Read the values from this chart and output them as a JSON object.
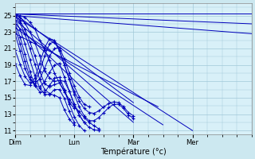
{
  "background_color": "#cce8f0",
  "plot_bg_color": "#d8f0f8",
  "grid_color": "#a0c8d8",
  "line_color": "#0000bb",
  "xlabel": "Température (°c)",
  "ylim": [
    10.5,
    26.5
  ],
  "yticks": [
    11,
    13,
    15,
    17,
    19,
    21,
    23,
    25
  ],
  "xlim": [
    0,
    96
  ],
  "day_positions": [
    0,
    24,
    48,
    72
  ],
  "day_labels": [
    "Dim",
    "Lun",
    "Mar",
    "Mer"
  ],
  "series": [
    {
      "start": 0,
      "step": 2,
      "values": [
        25.2,
        25.0,
        24.8,
        24.2,
        23.4,
        22.0,
        20.8,
        19.5,
        18.0,
        16.8,
        15.7,
        14.8,
        14.0,
        13.3,
        12.6,
        12.0,
        11.6,
        11.2
      ]
    },
    {
      "start": 0,
      "step": 2,
      "values": [
        25.1,
        24.8,
        24.1,
        23.0,
        21.7,
        20.1,
        18.3,
        17.4,
        17.0,
        17.1,
        17.0,
        15.8,
        14.2,
        12.9,
        12.0,
        11.4,
        11.1,
        11.0
      ]
    },
    {
      "start": 0,
      "step": 2,
      "values": [
        25.0,
        24.4,
        23.3,
        21.8,
        20.1,
        18.2,
        16.7,
        16.3,
        16.6,
        16.8,
        15.9,
        14.2,
        12.7,
        11.6,
        11.0
      ]
    },
    {
      "start": 0,
      "step": 2,
      "values": [
        24.9,
        24.1,
        22.7,
        21.0,
        19.1,
        17.2,
        16.0,
        15.5,
        15.3,
        15.0,
        13.5,
        12.4,
        11.7
      ]
    },
    {
      "start": 0,
      "step": 2,
      "values": [
        24.5,
        23.3,
        21.6,
        19.6,
        17.7,
        16.2,
        15.4,
        15.4,
        16.0,
        16.0,
        14.9,
        13.3,
        12.0
      ]
    },
    {
      "start": 0,
      "step": 2,
      "values": [
        24.0,
        22.4,
        20.3,
        18.2,
        16.5,
        15.7,
        15.7,
        16.5,
        17.4,
        17.5,
        16.0,
        14.4,
        13.7
      ]
    },
    {
      "start": 0,
      "step": 2,
      "values": [
        23.5,
        21.6,
        19.4,
        17.5,
        16.4,
        16.3,
        17.0,
        18.1,
        19.0,
        19.2,
        17.5,
        15.8,
        14.2,
        12.9,
        12.0
      ]
    },
    {
      "start": 0,
      "step": 2,
      "values": [
        22.8,
        20.7,
        18.6,
        17.2,
        16.7,
        17.3,
        18.6,
        20.1,
        21.0,
        21.1,
        19.7,
        18.0,
        16.4,
        15.1,
        14.2,
        13.9
      ]
    },
    {
      "start": 0,
      "step": 2,
      "values": [
        20.8,
        19.1,
        17.6,
        16.8,
        17.0,
        18.2,
        20.1,
        21.6,
        21.8,
        20.7,
        19.0,
        17.3,
        15.8,
        14.6,
        13.7,
        13.2,
        13.1,
        13.4,
        13.9,
        14.3,
        14.5,
        14.4,
        13.9,
        13.2,
        12.8
      ]
    },
    {
      "start": 0,
      "step": 2,
      "values": [
        19.2,
        17.7,
        16.6,
        16.5,
        17.4,
        19.2,
        21.1,
        22.2,
        22.0,
        20.8,
        19.0,
        17.2,
        15.4,
        13.9,
        12.8,
        12.2,
        12.2,
        12.6,
        13.2,
        13.8,
        14.2,
        14.2,
        13.7,
        12.9,
        12.5
      ]
    },
    {
      "start": 0,
      "step": 96,
      "values": [
        25.3,
        25.3
      ],
      "is_straight": true
    },
    {
      "start": 0,
      "step": 96,
      "values": [
        25.2,
        24.0
      ],
      "is_straight": true
    },
    {
      "start": 0,
      "step": 96,
      "values": [
        25.0,
        22.8
      ],
      "is_straight": true
    },
    {
      "start": 0,
      "step": 48,
      "values": [
        25.2,
        14.4
      ],
      "is_straight": true
    },
    {
      "start": 0,
      "step": 72,
      "values": [
        24.9,
        11.0
      ],
      "is_straight": true
    },
    {
      "start": 0,
      "step": 48,
      "values": [
        24.5,
        12.0
      ],
      "is_straight": true
    },
    {
      "start": 0,
      "step": 36,
      "values": [
        24.0,
        13.7
      ],
      "is_straight": true
    },
    {
      "start": 0,
      "step": 60,
      "values": [
        23.5,
        11.7
      ],
      "is_straight": true
    },
    {
      "start": 0,
      "step": 58,
      "values": [
        22.8,
        13.9
      ],
      "is_straight": true
    }
  ]
}
